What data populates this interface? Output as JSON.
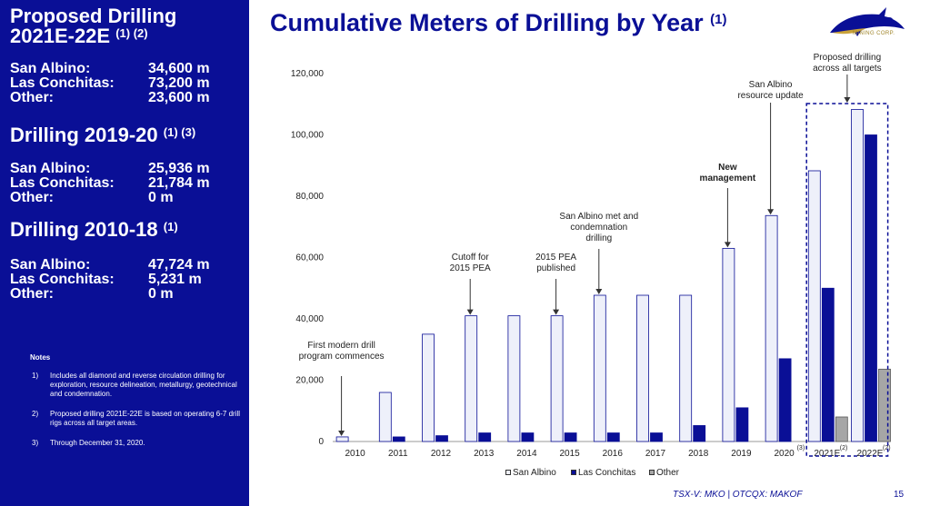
{
  "sidebar": {
    "proposed": {
      "title_line1": "Proposed Drilling",
      "title_line2": "2021E-22E",
      "title_sup": "(1) (2)",
      "rows": [
        {
          "label": "San Albino:",
          "value": "34,600 m"
        },
        {
          "label": "Las Conchitas:",
          "value": "73,200 m"
        },
        {
          "label": "Other:",
          "value": "23,600 m"
        }
      ]
    },
    "d1920": {
      "title": "Drilling 2019-20",
      "title_sup": "(1) (3)",
      "rows": [
        {
          "label": "San Albino:",
          "value": "25,936 m"
        },
        {
          "label": "Las Conchitas:",
          "value": "21,784 m"
        },
        {
          "label": "Other:",
          "value": "0 m"
        }
      ]
    },
    "d1018": {
      "title": "Drilling 2010-18",
      "title_sup": "(1)",
      "rows": [
        {
          "label": "San Albino:",
          "value": "47,724 m"
        },
        {
          "label": "Las Conchitas:",
          "value": "5,231 m"
        },
        {
          "label": "Other:",
          "value": "0 m"
        }
      ]
    },
    "notes_title": "Notes",
    "notes": [
      {
        "num": "1)",
        "text": "Includes all diamond and reverse circulation drilling for exploration, resource delineation, metallurgy, geotechnical and condemnation."
      },
      {
        "num": "2)",
        "text": "Proposed drilling 2021E-22E is based on operating 6-7 drill rigs across all target areas."
      },
      {
        "num": "3)",
        "text": "Through December 31, 2020."
      }
    ]
  },
  "header": {
    "title": "Cumulative Meters of Drilling by Year",
    "title_sup": "(1)"
  },
  "logo": {
    "name": "MAKO",
    "sub": "MINING CORP."
  },
  "colors": {
    "navy": "#0a0f96",
    "san_albino": "#eef0fa",
    "las_conchitas": "#0a0f96",
    "other": "#a6a6a6"
  },
  "chart_data": {
    "type": "bar",
    "categories": [
      "2010",
      "2011",
      "2012",
      "2013",
      "2014",
      "2015",
      "2016",
      "2017",
      "2018",
      "2019",
      "2020",
      "2021E",
      "2022E"
    ],
    "category_sups": [
      "",
      "",
      "",
      "",
      "",
      "",
      "",
      "",
      "",
      "",
      "(3)",
      "(2)",
      "(2)"
    ],
    "series": [
      {
        "name": "San Albino",
        "values": [
          1500,
          16000,
          35000,
          41000,
          41000,
          41000,
          47700,
          47700,
          47700,
          63000,
          73700,
          88300,
          108300
        ]
      },
      {
        "name": "Las Conchitas",
        "values": [
          0,
          1500,
          1900,
          2800,
          2800,
          2800,
          2800,
          2800,
          5200,
          11000,
          27000,
          50000,
          100000
        ]
      },
      {
        "name": "Other",
        "values": [
          0,
          0,
          0,
          0,
          0,
          0,
          0,
          0,
          0,
          0,
          0,
          8000,
          23600
        ]
      }
    ],
    "yticks": [
      "0",
      "20,000",
      "40,000",
      "60,000",
      "80,000",
      "100,000",
      "120,000"
    ],
    "ylim": [
      0,
      120000
    ],
    "legend_position": "bottom",
    "annotations": [
      {
        "text": "First modern drill program commences",
        "category": "2010",
        "bold": false
      },
      {
        "text": "Cutoff for 2015 PEA",
        "category": "2013",
        "bold": false
      },
      {
        "text": "2015 PEA published",
        "category": "2015",
        "bold": false
      },
      {
        "text": "San Albino met and condemnation drilling",
        "category": "2016",
        "bold": false
      },
      {
        "text": "New management",
        "category": "2019",
        "bold": true
      },
      {
        "text": "San Albino resource update",
        "category": "2020",
        "bold": false
      },
      {
        "text": "Proposed drilling across all targets",
        "category": "2021E-2022E",
        "bold": false
      }
    ]
  },
  "footer": {
    "ticker": "TSX-V: MKO  |  OTCQX: MAKOF",
    "page": "15"
  }
}
